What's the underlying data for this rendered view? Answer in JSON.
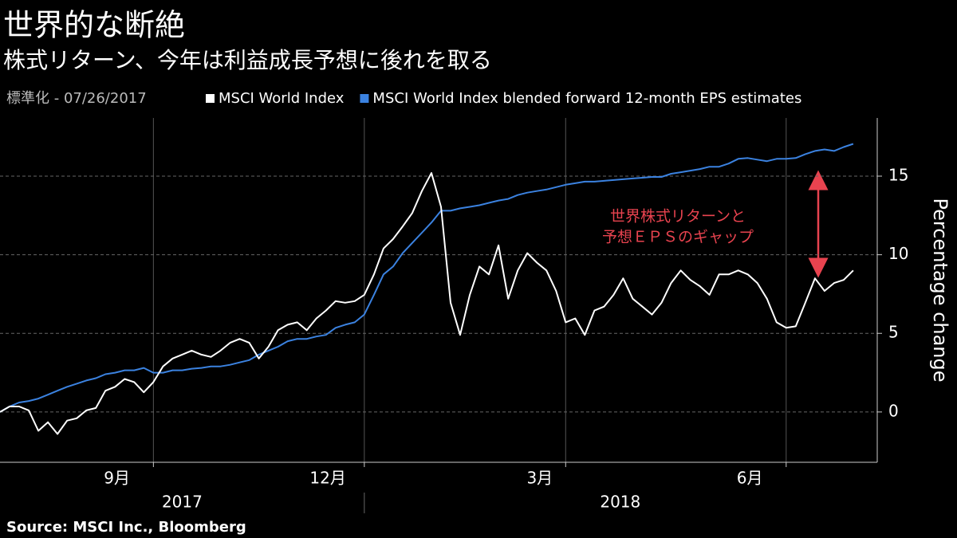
{
  "chart_data": {
    "type": "line",
    "title": "世界的な断絶",
    "subtitle": "株式リターン、今年は利益成長予想に後れを取る",
    "note": "標準化 - 07/26/2017",
    "y_axis_label": "Percentage change",
    "annotation": [
      "世界株式リターンと",
      "予想ＥＰＳのギャップ"
    ],
    "source": "Source: MSCI Inc., Bloomberg",
    "xlim": [
      0,
      91.5
    ],
    "xticks": [
      {
        "value": 12.2,
        "label": "9月"
      },
      {
        "value": 34.2,
        "label": "12月"
      },
      {
        "value": 56.3,
        "label": "3月"
      },
      {
        "value": 78.2,
        "label": "6月"
      }
    ],
    "x_grid": [
      16,
      38,
      59,
      82
    ],
    "x_year_labels": [
      {
        "value": 19,
        "label": "2017"
      },
      {
        "value": 64.7,
        "label": "2018"
      }
    ],
    "ylim": [
      -3.2,
      18.7
    ],
    "yticks": [
      0,
      5,
      10,
      15
    ],
    "grid": true,
    "series": [
      {
        "name": "MSCI World Index",
        "color": "#ffffff",
        "values": [
          0,
          0.35,
          0.35,
          0.1,
          -1.2,
          -0.65,
          -1.4,
          -0.55,
          -0.4,
          0.1,
          0.25,
          1.35,
          1.6,
          2.1,
          1.9,
          1.25,
          1.9,
          2.9,
          3.4,
          3.65,
          3.9,
          3.65,
          3.5,
          3.9,
          4.4,
          4.65,
          4.4,
          3.4,
          4.15,
          5.2,
          5.55,
          5.7,
          5.2,
          5.95,
          6.45,
          7.05,
          6.95,
          7.05,
          7.45,
          8.75,
          10.4,
          11.0,
          11.8,
          12.65,
          14.05,
          15.2,
          13.05,
          6.95,
          4.9,
          7.45,
          9.25,
          8.75,
          10.6,
          7.2,
          9.0,
          10.1,
          9.5,
          9.0,
          7.7,
          5.7,
          5.95,
          4.9,
          6.45,
          6.7,
          7.45,
          8.5,
          7.2,
          6.7,
          6.2,
          6.95,
          8.2,
          9.0,
          8.4,
          8.0,
          7.45,
          8.75,
          8.75,
          9.0,
          8.75,
          8.2,
          7.2,
          5.7,
          5.35,
          5.45,
          6.95,
          8.5,
          7.7,
          8.2,
          8.4,
          9.0
        ]
      },
      {
        "name": "MSCI World Index blended forward 12-month EPS estimates",
        "color": "#3b82e0",
        "values": [
          0,
          0.35,
          0.6,
          0.7,
          0.85,
          1.1,
          1.35,
          1.6,
          1.8,
          2.0,
          2.15,
          2.4,
          2.5,
          2.65,
          2.65,
          2.8,
          2.5,
          2.5,
          2.65,
          2.65,
          2.75,
          2.8,
          2.9,
          2.9,
          3.0,
          3.15,
          3.3,
          3.65,
          3.9,
          4.15,
          4.5,
          4.65,
          4.65,
          4.8,
          4.9,
          5.35,
          5.55,
          5.7,
          6.2,
          7.45,
          8.75,
          9.25,
          10.1,
          10.75,
          11.4,
          12.05,
          12.8,
          12.8,
          12.95,
          13.05,
          13.15,
          13.3,
          13.45,
          13.55,
          13.8,
          13.95,
          14.05,
          14.15,
          14.3,
          14.45,
          14.55,
          14.65,
          14.65,
          14.7,
          14.75,
          14.8,
          14.85,
          14.9,
          14.95,
          14.95,
          15.15,
          15.25,
          15.35,
          15.45,
          15.6,
          15.6,
          15.8,
          16.1,
          16.15,
          16.05,
          15.95,
          16.1,
          16.1,
          16.15,
          16.4,
          16.6,
          16.7,
          16.6,
          16.85,
          17.05
        ]
      }
    ]
  }
}
